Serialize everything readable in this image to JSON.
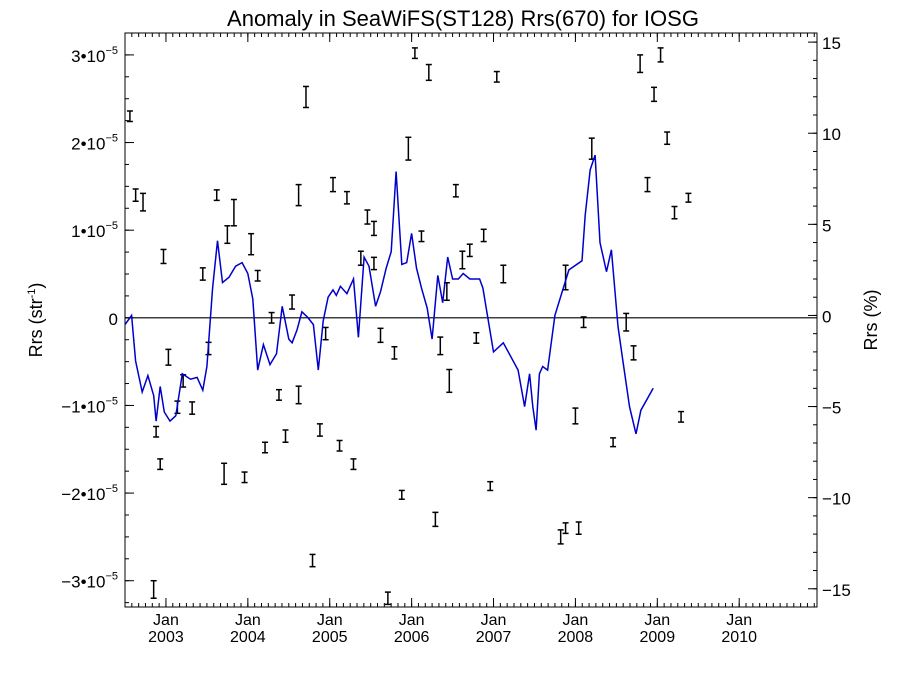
{
  "chart_data": {
    "type": "line",
    "title": "Anomaly in SeaWiFS(ST128) Rrs(670) for IOSG",
    "ylabel_left": "Rrs (str",
    "ylabel_left_sup": "-1",
    "ylabel_left_close": ")",
    "ylabel_right": "Rrs (%)",
    "x_range": [
      2002.5,
      2010.95
    ],
    "y_left_range": [
      -3.3e-05,
      3.25e-05
    ],
    "y_right_range": [
      -16,
      15.5
    ],
    "grid": false,
    "y_left_ticks": [
      {
        "value": 3e-05,
        "label": "3•10",
        "exp": "−5"
      },
      {
        "value": 2e-05,
        "label": "2•10",
        "exp": "−5"
      },
      {
        "value": 1e-05,
        "label": "1•10",
        "exp": "−5"
      },
      {
        "value": 0,
        "label": "0",
        "exp": ""
      },
      {
        "value": -1e-05,
        "label": "−1•10",
        "exp": "−5"
      },
      {
        "value": -2e-05,
        "label": "−2•10",
        "exp": "−5"
      },
      {
        "value": -3e-05,
        "label": "−3•10",
        "exp": "−5"
      }
    ],
    "y_right_ticks": [
      {
        "value": 15,
        "label": "15"
      },
      {
        "value": 10,
        "label": "10"
      },
      {
        "value": 5,
        "label": "5"
      },
      {
        "value": 0,
        "label": "0"
      },
      {
        "value": -5,
        "label": "−5"
      },
      {
        "value": -10,
        "label": "−10"
      },
      {
        "value": -15,
        "label": "−15"
      }
    ],
    "x_ticks": [
      {
        "value": 2003.0,
        "month": "Jan",
        "year": "2003"
      },
      {
        "value": 2004.0,
        "month": "Jan",
        "year": "2004"
      },
      {
        "value": 2005.0,
        "month": "Jan",
        "year": "2005"
      },
      {
        "value": 2006.0,
        "month": "Jan",
        "year": "2006"
      },
      {
        "value": 2007.0,
        "month": "Jan",
        "year": "2007"
      },
      {
        "value": 2008.0,
        "month": "Jan",
        "year": "2008"
      },
      {
        "value": 2009.0,
        "month": "Jan",
        "year": "2009"
      },
      {
        "value": 2010.0,
        "month": "Jan",
        "year": "2010"
      }
    ],
    "series": [
      {
        "axis": "left",
        "style": "errorbar",
        "color": "#000000",
        "points": [
          [
            2002.56,
            2.3e-05,
            6e-07
          ],
          [
            2002.63,
            1.4e-05,
            7e-07
          ],
          [
            2002.72,
            1.32e-05,
            1e-06
          ],
          [
            2002.85,
            -3.1e-05,
            1e-06
          ],
          [
            2002.88,
            -1.3e-05,
            6e-07
          ],
          [
            2002.93,
            -1.67e-05,
            6e-07
          ],
          [
            2002.97,
            7e-06,
            8e-07
          ],
          [
            2003.03,
            -4.5e-06,
            9e-07
          ],
          [
            2003.14,
            -1.02e-05,
            7e-07
          ],
          [
            2003.21,
            -7.2e-06,
            7e-07
          ],
          [
            2003.32,
            -1.03e-05,
            7e-07
          ],
          [
            2003.45,
            5e-06,
            7e-07
          ],
          [
            2003.52,
            -3.5e-06,
            7e-07
          ],
          [
            2003.62,
            1.4e-05,
            6e-07
          ],
          [
            2003.71,
            -1.78e-05,
            1.2e-06
          ],
          [
            2003.75,
            9.5e-06,
            1e-06
          ],
          [
            2003.83,
            1.2e-05,
            1.5e-06
          ],
          [
            2003.96,
            -1.82e-05,
            6e-07
          ],
          [
            2004.04,
            8.4e-06,
            1.2e-06
          ],
          [
            2004.12,
            4.8e-06,
            6e-07
          ],
          [
            2004.21,
            -1.48e-05,
            6e-07
          ],
          [
            2004.29,
            0.0,
            6e-07
          ],
          [
            2004.38,
            -8.8e-06,
            6e-07
          ],
          [
            2004.46,
            -1.35e-05,
            7e-07
          ],
          [
            2004.54,
            1.8e-06,
            8e-07
          ],
          [
            2004.62,
            -8.8e-06,
            1e-06
          ],
          [
            2004.62,
            1.4e-05,
            1.2e-06
          ],
          [
            2004.71,
            2.52e-05,
            1.2e-06
          ],
          [
            2004.79,
            -2.77e-05,
            7e-07
          ],
          [
            2004.88,
            -1.28e-05,
            7e-07
          ],
          [
            2004.95,
            -1.8e-06,
            7e-07
          ],
          [
            2005.04,
            1.52e-05,
            8e-07
          ],
          [
            2005.12,
            -1.46e-05,
            6e-07
          ],
          [
            2005.21,
            1.37e-05,
            7e-07
          ],
          [
            2005.29,
            -1.67e-05,
            6e-07
          ],
          [
            2005.38,
            6.8e-06,
            8e-07
          ],
          [
            2005.46,
            1.15e-05,
            8e-07
          ],
          [
            2005.54,
            1.02e-05,
            8e-07
          ],
          [
            2005.54,
            6.2e-06,
            7e-07
          ],
          [
            2005.62,
            -2e-06,
            8e-07
          ],
          [
            2005.71,
            -3.2e-05,
            7e-07
          ],
          [
            2005.79,
            -4e-06,
            7e-07
          ],
          [
            2005.88,
            -2.02e-05,
            5e-07
          ],
          [
            2005.96,
            1.93e-05,
            1.3e-06
          ],
          [
            2006.04,
            3.02e-05,
            6e-07
          ],
          [
            2006.12,
            9.3e-06,
            6e-07
          ],
          [
            2006.21,
            2.8e-05,
            9e-07
          ],
          [
            2006.29,
            -2.3e-05,
            8e-07
          ],
          [
            2006.35,
            -3.2e-06,
            1e-06
          ],
          [
            2006.43,
            3e-06,
            1e-06
          ],
          [
            2006.46,
            -7.2e-06,
            1.3e-06
          ],
          [
            2006.54,
            1.45e-05,
            7e-07
          ],
          [
            2006.62,
            6.6e-06,
            1e-06
          ],
          [
            2006.71,
            7.7e-06,
            7e-07
          ],
          [
            2006.79,
            -2.3e-06,
            6e-07
          ],
          [
            2006.88,
            9.4e-06,
            7e-07
          ],
          [
            2006.96,
            -1.92e-05,
            5e-07
          ],
          [
            2007.04,
            2.75e-05,
            6e-07
          ],
          [
            2007.12,
            5e-06,
            1e-06
          ],
          [
            2007.88,
            4.6e-06,
            1.4e-06
          ],
          [
            2007.82,
            -2.5e-05,
            8e-07
          ],
          [
            2007.88,
            -2.4e-05,
            6e-07
          ],
          [
            2008.04,
            -2.4e-05,
            7e-07
          ],
          [
            2008.0,
            -1.12e-05,
            9e-07
          ],
          [
            2008.1,
            -5e-07,
            6e-07
          ],
          [
            2008.2,
            1.93e-05,
            1.2e-06
          ],
          [
            2008.46,
            -1.42e-05,
            5e-07
          ],
          [
            2008.62,
            -5e-07,
            1e-06
          ],
          [
            2008.71,
            -4e-06,
            8e-07
          ],
          [
            2008.79,
            2.9e-05,
            1e-06
          ],
          [
            2008.88,
            1.52e-05,
            8e-07
          ],
          [
            2008.96,
            2.55e-05,
            8e-07
          ],
          [
            2009.04,
            3e-05,
            8e-07
          ],
          [
            2009.12,
            2.05e-05,
            7e-07
          ],
          [
            2009.21,
            1.2e-05,
            7e-07
          ],
          [
            2009.29,
            -1.13e-05,
            6e-07
          ],
          [
            2009.38,
            1.37e-05,
            5e-07
          ]
        ]
      },
      {
        "axis": "right",
        "style": "line",
        "color": "#0000cc",
        "points": [
          [
            2002.5,
            -0.5
          ],
          [
            2002.58,
            0.0
          ],
          [
            2002.63,
            -2.5
          ],
          [
            2002.71,
            -4.2
          ],
          [
            2002.78,
            -3.3
          ],
          [
            2002.85,
            -4.4
          ],
          [
            2002.88,
            -5.8
          ],
          [
            2002.93,
            -3.9
          ],
          [
            2002.98,
            -5.3
          ],
          [
            2003.05,
            -5.8
          ],
          [
            2003.12,
            -5.5
          ],
          [
            2003.2,
            -3.2
          ],
          [
            2003.3,
            -3.5
          ],
          [
            2003.38,
            -3.4
          ],
          [
            2003.45,
            -4.1
          ],
          [
            2003.5,
            -2.8
          ],
          [
            2003.57,
            1.5
          ],
          [
            2003.63,
            4.1
          ],
          [
            2003.69,
            1.8
          ],
          [
            2003.77,
            2.1
          ],
          [
            2003.85,
            2.7
          ],
          [
            2003.93,
            2.9
          ],
          [
            2004.0,
            2.3
          ],
          [
            2004.06,
            0.9
          ],
          [
            2004.12,
            -3.0
          ],
          [
            2004.19,
            -1.6
          ],
          [
            2004.27,
            -2.7
          ],
          [
            2004.35,
            -2.1
          ],
          [
            2004.42,
            0.5
          ],
          [
            2004.5,
            -1.3
          ],
          [
            2004.54,
            -1.5
          ],
          [
            2004.6,
            -0.8
          ],
          [
            2004.66,
            0.2
          ],
          [
            2004.73,
            -0.1
          ],
          [
            2004.8,
            -0.5
          ],
          [
            2004.86,
            -3.0
          ],
          [
            2004.92,
            -0.3
          ],
          [
            2004.98,
            1.0
          ],
          [
            2005.04,
            1.4
          ],
          [
            2005.08,
            1.1
          ],
          [
            2005.13,
            1.6
          ],
          [
            2005.21,
            1.2
          ],
          [
            2005.29,
            2.0
          ],
          [
            2005.35,
            -1.2
          ],
          [
            2005.42,
            3.2
          ],
          [
            2005.48,
            2.7
          ],
          [
            2005.56,
            0.5
          ],
          [
            2005.62,
            1.3
          ],
          [
            2005.69,
            2.6
          ],
          [
            2005.75,
            3.5
          ],
          [
            2005.81,
            7.9
          ],
          [
            2005.88,
            2.8
          ],
          [
            2005.94,
            2.9
          ],
          [
            2006.0,
            4.5
          ],
          [
            2006.06,
            2.6
          ],
          [
            2006.12,
            1.5
          ],
          [
            2006.19,
            0.4
          ],
          [
            2006.25,
            -1.3
          ],
          [
            2006.32,
            2.2
          ],
          [
            2006.38,
            0.7
          ],
          [
            2006.44,
            3.2
          ],
          [
            2006.5,
            2.0
          ],
          [
            2006.57,
            2.0
          ],
          [
            2006.63,
            2.3
          ],
          [
            2006.71,
            2.0
          ],
          [
            2006.77,
            2.0
          ],
          [
            2006.83,
            2.0
          ],
          [
            2006.87,
            1.5
          ],
          [
            2007.0,
            -2.0
          ],
          [
            2007.12,
            -1.5
          ],
          [
            2007.3,
            -3.0
          ],
          [
            2007.38,
            -5.0
          ],
          [
            2007.44,
            -3.2
          ],
          [
            2007.48,
            -5.0
          ],
          [
            2007.52,
            -6.3
          ],
          [
            2007.56,
            -3.2
          ],
          [
            2007.6,
            -2.8
          ],
          [
            2007.66,
            -3.0
          ],
          [
            2007.75,
            0.0
          ],
          [
            2007.92,
            2.5
          ],
          [
            2008.08,
            3.0
          ],
          [
            2008.12,
            5.5
          ],
          [
            2008.18,
            8.0
          ],
          [
            2008.24,
            8.8
          ],
          [
            2008.3,
            4.0
          ],
          [
            2008.38,
            2.4
          ],
          [
            2008.44,
            3.6
          ],
          [
            2008.52,
            -0.6
          ],
          [
            2008.58,
            -2.5
          ],
          [
            2008.66,
            -5.0
          ],
          [
            2008.74,
            -6.5
          ],
          [
            2008.8,
            -5.2
          ],
          [
            2008.95,
            -4.0
          ]
        ]
      }
    ]
  }
}
